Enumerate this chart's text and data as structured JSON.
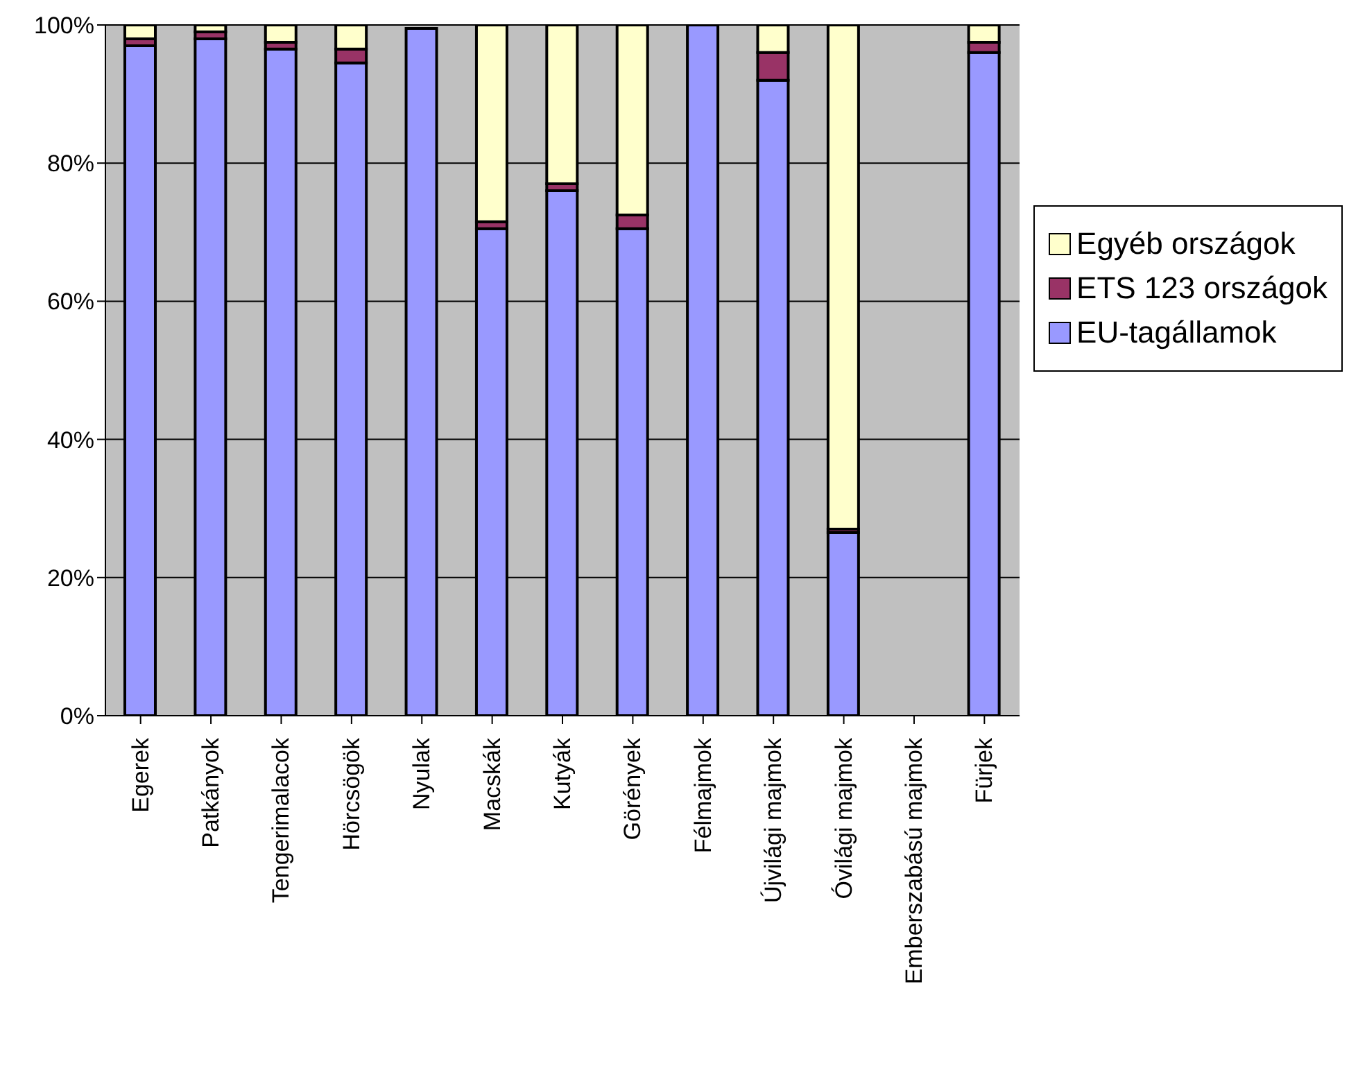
{
  "chart_data": {
    "type": "bar",
    "stacked": true,
    "categories": [
      "Egerek",
      "Patkányok",
      "Tengerimalacok",
      "Hörcsögök",
      "Nyulak",
      "Macskák",
      "Kutyák",
      "Görények",
      "Félmajmok",
      "Újvilági majmok",
      "Óvilági majmok",
      "Emberszabású majmok",
      "Fürjek"
    ],
    "series": [
      {
        "name": "EU-tagállamok",
        "color": "#9999ff",
        "values": [
          97,
          98,
          96.5,
          94.5,
          99.5,
          70.5,
          76,
          70.5,
          100,
          92,
          26.5,
          0,
          96
        ]
      },
      {
        "name": "ETS 123 országok",
        "color": "#993366",
        "values": [
          1,
          1,
          1,
          2,
          null,
          1,
          1,
          2,
          0,
          4,
          0.5,
          0,
          1.5
        ]
      },
      {
        "name": "Egyéb országok",
        "color": "#ffffcc",
        "values": [
          2,
          1,
          2.5,
          3.5,
          null,
          28.5,
          23,
          27.5,
          0,
          4,
          73,
          0,
          2.5
        ]
      }
    ],
    "ylim": [
      0,
      100
    ],
    "yticks": [
      {
        "value": 0,
        "label": "0%"
      },
      {
        "value": 20,
        "label": "20%"
      },
      {
        "value": 40,
        "label": "40%"
      },
      {
        "value": 60,
        "label": "60%"
      },
      {
        "value": 80,
        "label": "80%"
      },
      {
        "value": 100,
        "label": "100%"
      }
    ],
    "grid": "y",
    "legend": "right"
  }
}
